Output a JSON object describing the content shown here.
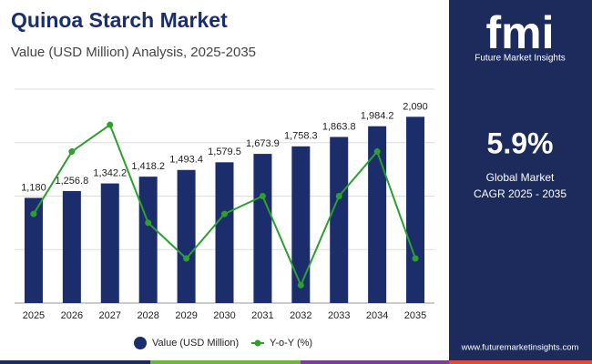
{
  "chart_data": {
    "type": "bar",
    "title": "Quinoa Starch Market",
    "subtitle": "Value (USD Million) Analysis, 2025-2035",
    "categories": [
      "2025",
      "2026",
      "2027",
      "2028",
      "2029",
      "2030",
      "2031",
      "2032",
      "2033",
      "2034",
      "2035"
    ],
    "series": [
      {
        "name": "Value (USD Million)",
        "type": "bar",
        "color": "#1b2d6b",
        "values": [
          1180,
          1256.8,
          1342.2,
          1418.2,
          1493.4,
          1579.5,
          1673.9,
          1758.3,
          1863.8,
          1984.2,
          2090
        ],
        "value_labels": [
          "1,180",
          "1,256.8",
          "1,342.2",
          "1,418.2",
          "1,493.4",
          "1,579.5",
          "1,673.9",
          "1,758.3",
          "1,863.8",
          "1,984.2",
          "2,090"
        ]
      },
      {
        "name": "Y-o-Y (%)",
        "type": "line",
        "axis": "y2",
        "color": "#2ca02c",
        "values": [
          5.8,
          6.5,
          6.8,
          5.7,
          5.3,
          5.8,
          6.0,
          5.0,
          6.0,
          6.5,
          5.3
        ]
      }
    ],
    "ylim": [
      0,
      2400
    ],
    "yticks": [
      0,
      600,
      1200,
      1800,
      2400
    ],
    "y2lim": [
      4.8,
      7.2
    ],
    "grid": true
  },
  "sidebar": {
    "logo": "fmi",
    "brand": "Future Market Insights",
    "cagr": "5.9%",
    "cagr_label_1": "Global Market",
    "cagr_label_2": "CAGR 2025 - 2035",
    "website": "www.futuremarketinsights.com"
  }
}
